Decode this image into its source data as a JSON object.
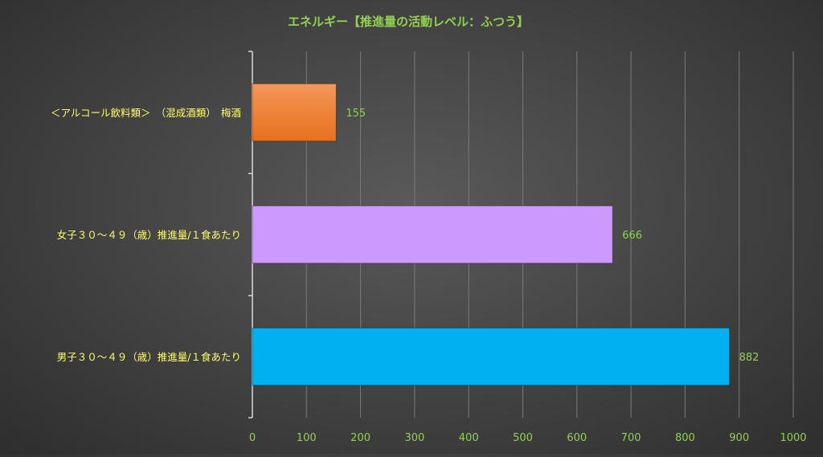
{
  "chart_data": {
    "type": "bar",
    "orientation": "horizontal",
    "title": "エネルギー【推進量の活動レベル：ふつう】",
    "xlabel": "",
    "ylabel": "",
    "xlim": [
      0,
      1000
    ],
    "x_ticks": [
      0,
      100,
      200,
      300,
      400,
      500,
      600,
      700,
      800,
      900,
      1000
    ],
    "grid": true,
    "legend": "none",
    "categories": [
      "＜アルコール飲料類＞　（混成酒類）　梅酒",
      "女子３０～４９（歳）推進量/１食あたり",
      "男子３０～４９（歳）推進量/１食あたり"
    ],
    "values": [
      155,
      666,
      882
    ],
    "data_labels": [
      "155",
      "666",
      "882"
    ],
    "colors": {
      "bars": [
        "#f07a2c",
        "#cc99ff",
        "#00b0f0"
      ],
      "title": "#92d050",
      "category_labels": "#ffff66",
      "tick_labels": "#92d050",
      "data_labels": "#92d050",
      "gridlines": "#7a7a7a",
      "axis": "#d9d9d9"
    }
  }
}
